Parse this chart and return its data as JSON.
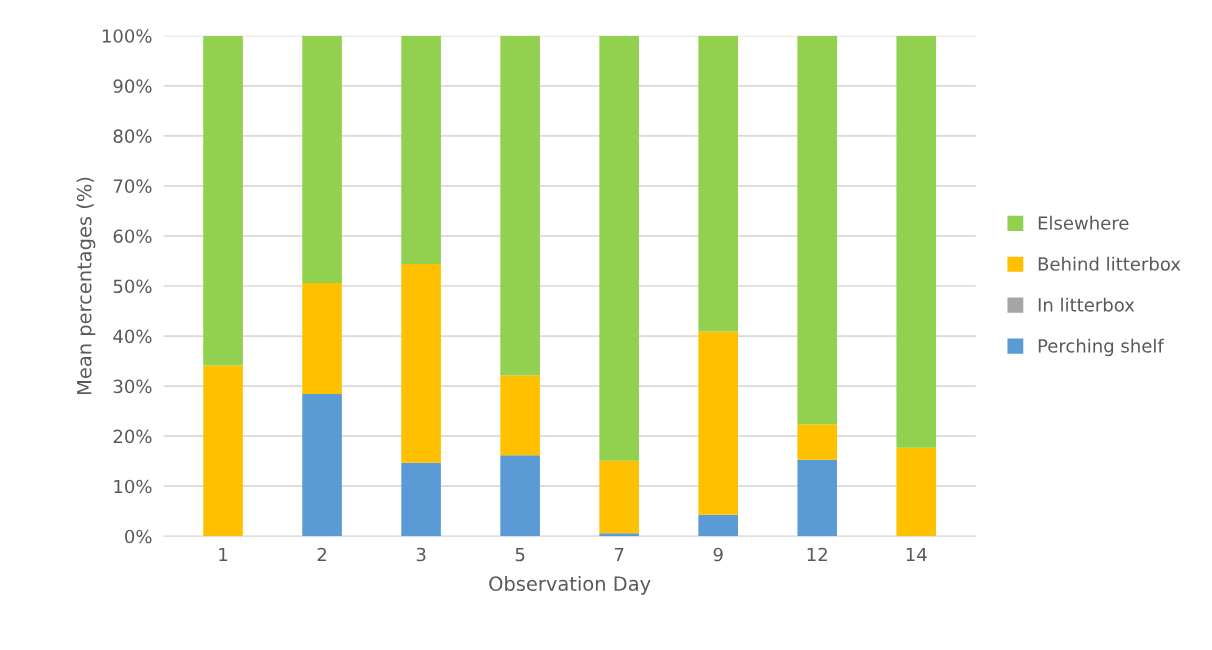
{
  "chart_data": {
    "type": "bar",
    "stacked": true,
    "xlabel": "Observation Day",
    "ylabel": "Mean percentages (%)",
    "categories": [
      "1",
      "2",
      "3",
      "5",
      "7",
      "9",
      "12",
      "14"
    ],
    "series": [
      {
        "name": "Perching shelf",
        "color": "#5b9bd5",
        "values": [
          0,
          28.4,
          14.7,
          16.2,
          0.6,
          4.3,
          15.3,
          0
        ]
      },
      {
        "name": "In litterbox",
        "color": "#a5a5a5",
        "values": [
          0,
          0,
          0,
          0,
          0,
          0,
          0,
          0
        ]
      },
      {
        "name": "Behind litterbox",
        "color": "#ffc000",
        "values": [
          34.1,
          22.2,
          39.7,
          15.9,
          14.5,
          36.6,
          7.1,
          17.7
        ]
      },
      {
        "name": "Elsewhere",
        "color": "#92d050",
        "values": [
          65.9,
          49.4,
          45.6,
          67.9,
          84.9,
          59.1,
          77.6,
          82.3
        ]
      }
    ],
    "ylim": [
      0,
      100
    ],
    "yticks": [
      {
        "value": 0,
        "label": "0%"
      },
      {
        "value": 10,
        "label": "10%"
      },
      {
        "value": 20,
        "label": "20%"
      },
      {
        "value": 30,
        "label": "30%"
      },
      {
        "value": 40,
        "label": "40%"
      },
      {
        "value": 50,
        "label": "50%"
      },
      {
        "value": 60,
        "label": "60%"
      },
      {
        "value": 70,
        "label": "70%"
      },
      {
        "value": 80,
        "label": "80%"
      },
      {
        "value": 90,
        "label": "90%"
      },
      {
        "value": 100,
        "label": "100%"
      }
    ],
    "grid": "y",
    "legend": "right"
  }
}
